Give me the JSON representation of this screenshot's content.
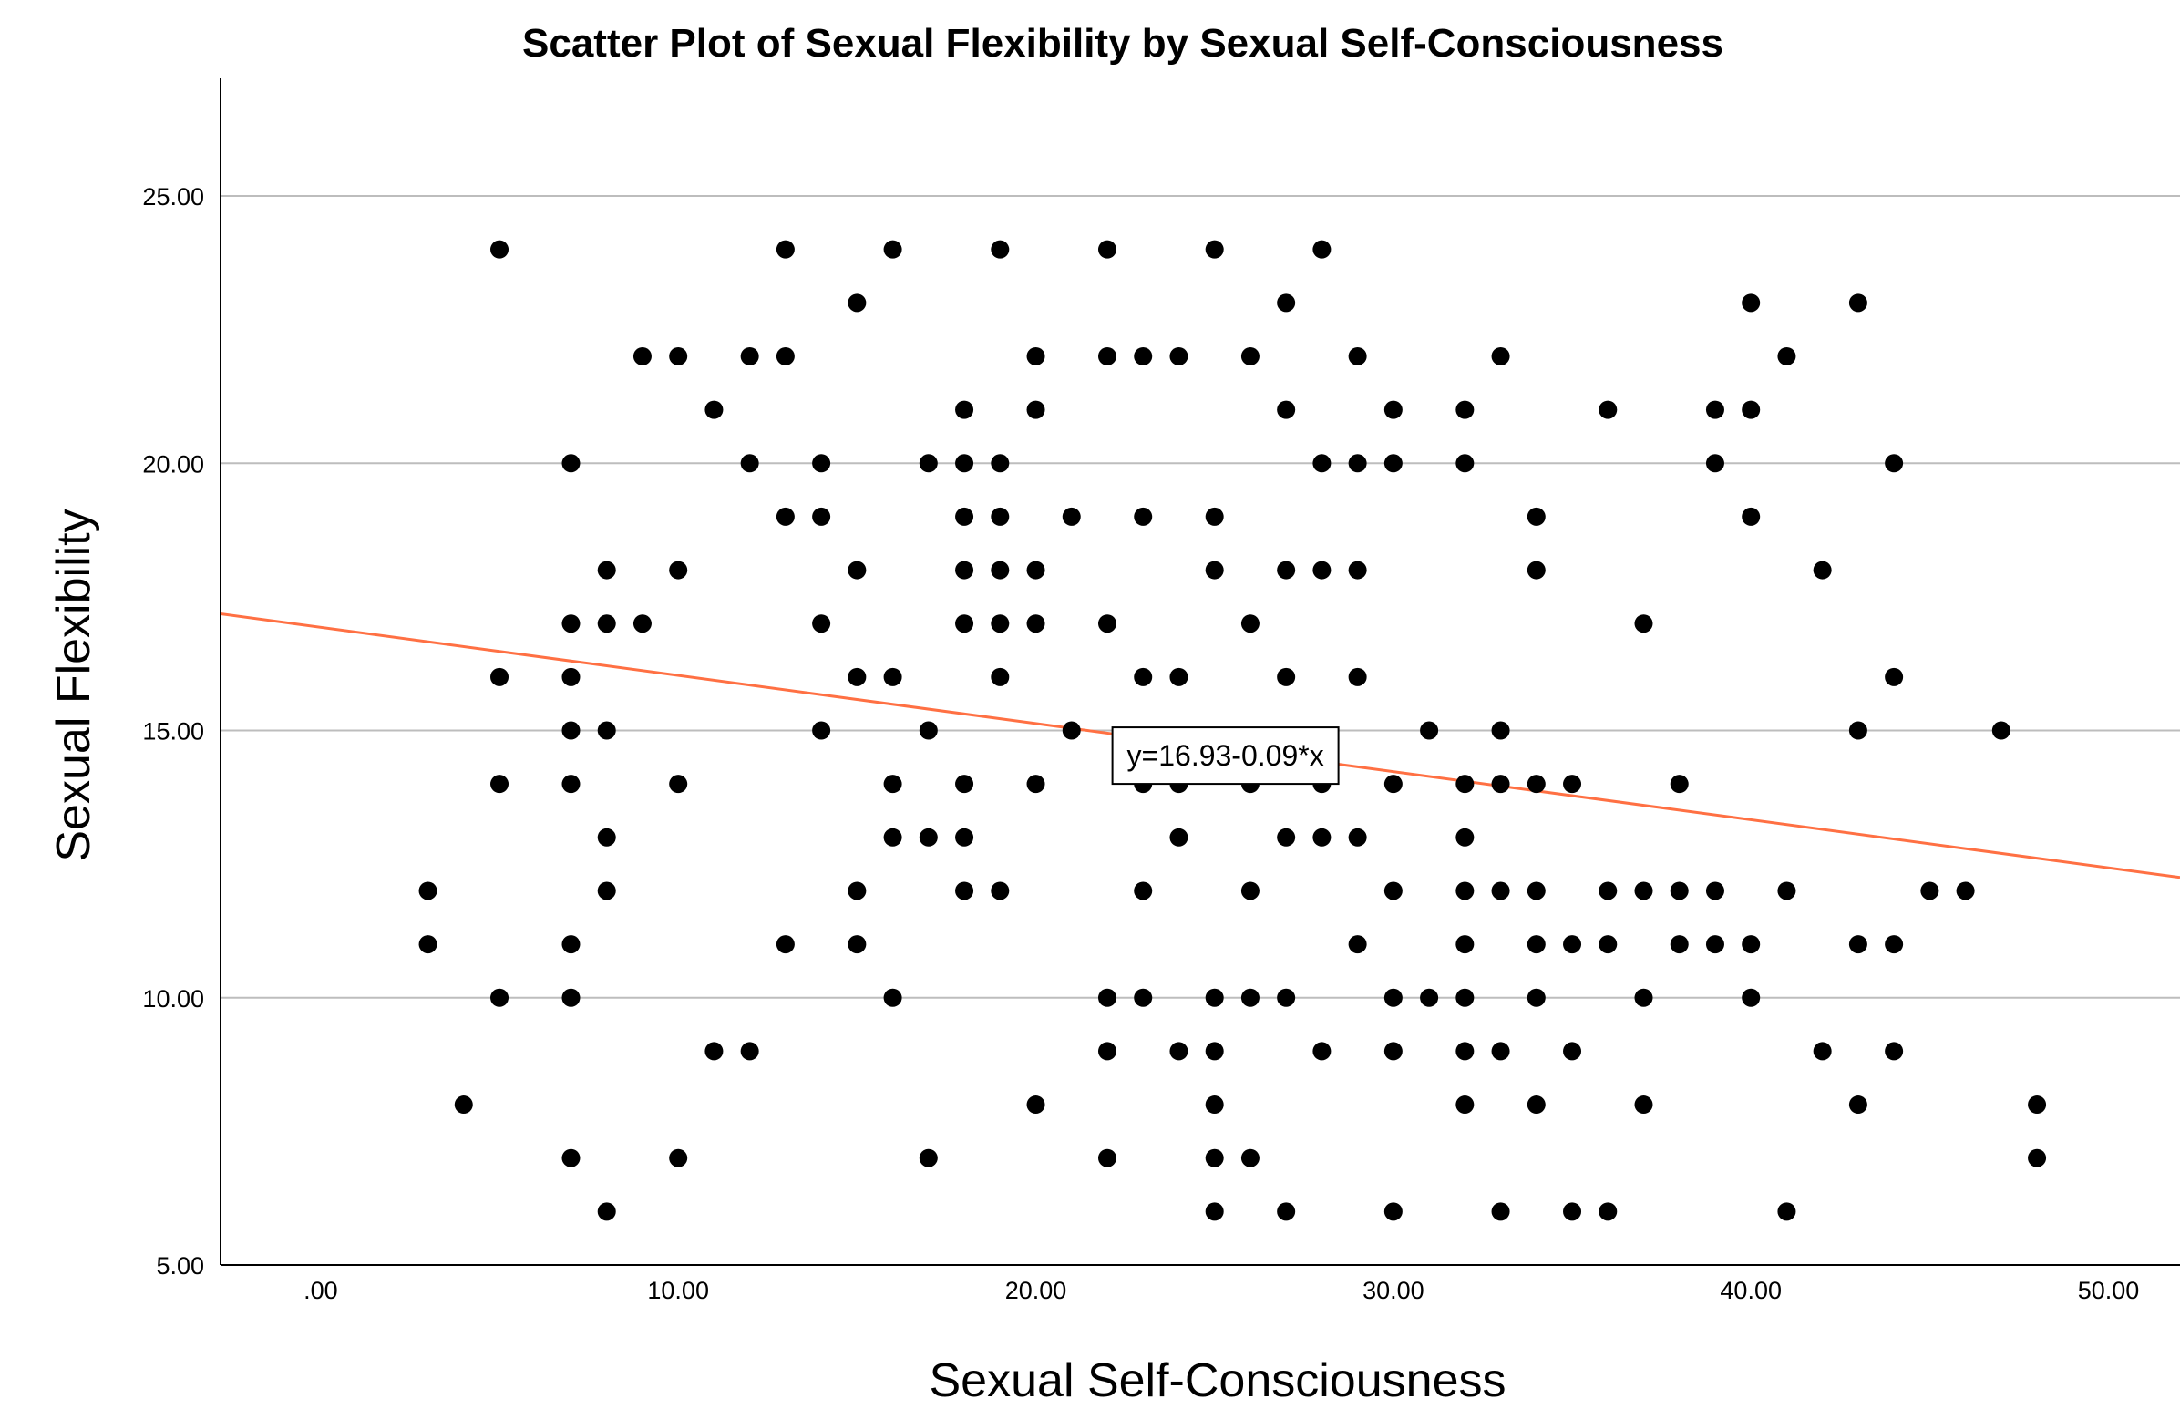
{
  "chart_data": {
    "type": "scatter",
    "title": "Scatter Plot of Sexual Flexibility by Sexual Self-Consciousness",
    "xlabel": "Sexual Self-Consciousness",
    "ylabel": "Sexual Flexibility",
    "xlim": [
      -2.8,
      52.0
    ],
    "ylim": [
      5.0,
      27.2
    ],
    "x_ticks": [
      0,
      10,
      20,
      30,
      40,
      50
    ],
    "x_tick_labels": [
      ".00",
      "10.00",
      "20.00",
      "30.00",
      "40.00",
      "50.00"
    ],
    "y_ticks": [
      5,
      10,
      15,
      20,
      25
    ],
    "y_tick_labels": [
      "5.00",
      "10.00",
      "15.00",
      "20.00",
      "25.00"
    ],
    "grid": "horizontal",
    "legend": "none",
    "colors": {
      "points": "#000000",
      "fit_line": "#ff7043",
      "grid": "#bdbdbd",
      "axis": "#000000"
    },
    "fit_line": {
      "intercept": 16.93,
      "slope": -0.09,
      "label": "y=16.93-0.09*x"
    },
    "points": [
      [
        5,
        24
      ],
      [
        13,
        24
      ],
      [
        16,
        24
      ],
      [
        19,
        24
      ],
      [
        22,
        24
      ],
      [
        25,
        24
      ],
      [
        28,
        24
      ],
      [
        15,
        23
      ],
      [
        27,
        23
      ],
      [
        40,
        23
      ],
      [
        43,
        23
      ],
      [
        9,
        22
      ],
      [
        10,
        22
      ],
      [
        12,
        22
      ],
      [
        13,
        22
      ],
      [
        20,
        22
      ],
      [
        22,
        22
      ],
      [
        23,
        22
      ],
      [
        24,
        22
      ],
      [
        26,
        22
      ],
      [
        29,
        22
      ],
      [
        33,
        22
      ],
      [
        41,
        22
      ],
      [
        11,
        21
      ],
      [
        18,
        21
      ],
      [
        20,
        21
      ],
      [
        27,
        21
      ],
      [
        30,
        21
      ],
      [
        32,
        21
      ],
      [
        36,
        21
      ],
      [
        39,
        21
      ],
      [
        40,
        21
      ],
      [
        7,
        20
      ],
      [
        12,
        20
      ],
      [
        14,
        20
      ],
      [
        17,
        20
      ],
      [
        18,
        20
      ],
      [
        19,
        20
      ],
      [
        28,
        20
      ],
      [
        29,
        20
      ],
      [
        30,
        20
      ],
      [
        32,
        20
      ],
      [
        39,
        20
      ],
      [
        44,
        20
      ],
      [
        13,
        19
      ],
      [
        14,
        19
      ],
      [
        18,
        19
      ],
      [
        19,
        19
      ],
      [
        21,
        19
      ],
      [
        23,
        19
      ],
      [
        25,
        19
      ],
      [
        34,
        19
      ],
      [
        40,
        19
      ],
      [
        8,
        18
      ],
      [
        10,
        18
      ],
      [
        15,
        18
      ],
      [
        18,
        18
      ],
      [
        19,
        18
      ],
      [
        20,
        18
      ],
      [
        25,
        18
      ],
      [
        27,
        18
      ],
      [
        28,
        18
      ],
      [
        29,
        18
      ],
      [
        34,
        18
      ],
      [
        42,
        18
      ],
      [
        7,
        17
      ],
      [
        8,
        17
      ],
      [
        9,
        17
      ],
      [
        14,
        17
      ],
      [
        18,
        17
      ],
      [
        19,
        17
      ],
      [
        20,
        17
      ],
      [
        22,
        17
      ],
      [
        26,
        17
      ],
      [
        37,
        17
      ],
      [
        5,
        16
      ],
      [
        7,
        16
      ],
      [
        15,
        16
      ],
      [
        16,
        16
      ],
      [
        19,
        16
      ],
      [
        23,
        16
      ],
      [
        24,
        16
      ],
      [
        27,
        16
      ],
      [
        29,
        16
      ],
      [
        44,
        16
      ],
      [
        7,
        15
      ],
      [
        8,
        15
      ],
      [
        14,
        15
      ],
      [
        17,
        15
      ],
      [
        21,
        15
      ],
      [
        31,
        15
      ],
      [
        33,
        15
      ],
      [
        43,
        15
      ],
      [
        47,
        15
      ],
      [
        5,
        14
      ],
      [
        7,
        14
      ],
      [
        10,
        14
      ],
      [
        16,
        14
      ],
      [
        18,
        14
      ],
      [
        20,
        14
      ],
      [
        23,
        14
      ],
      [
        24,
        14
      ],
      [
        26,
        14
      ],
      [
        28,
        14
      ],
      [
        30,
        14
      ],
      [
        32,
        14
      ],
      [
        33,
        14
      ],
      [
        34,
        14
      ],
      [
        35,
        14
      ],
      [
        38,
        14
      ],
      [
        8,
        13
      ],
      [
        16,
        13
      ],
      [
        17,
        13
      ],
      [
        18,
        13
      ],
      [
        24,
        13
      ],
      [
        27,
        13
      ],
      [
        28,
        13
      ],
      [
        29,
        13
      ],
      [
        32,
        13
      ],
      [
        3,
        12
      ],
      [
        8,
        12
      ],
      [
        15,
        12
      ],
      [
        18,
        12
      ],
      [
        19,
        12
      ],
      [
        23,
        12
      ],
      [
        26,
        12
      ],
      [
        30,
        12
      ],
      [
        32,
        12
      ],
      [
        33,
        12
      ],
      [
        34,
        12
      ],
      [
        36,
        12
      ],
      [
        37,
        12
      ],
      [
        38,
        12
      ],
      [
        39,
        12
      ],
      [
        41,
        12
      ],
      [
        45,
        12
      ],
      [
        46,
        12
      ],
      [
        3,
        11
      ],
      [
        7,
        11
      ],
      [
        13,
        11
      ],
      [
        15,
        11
      ],
      [
        29,
        11
      ],
      [
        32,
        11
      ],
      [
        34,
        11
      ],
      [
        35,
        11
      ],
      [
        36,
        11
      ],
      [
        38,
        11
      ],
      [
        39,
        11
      ],
      [
        40,
        11
      ],
      [
        43,
        11
      ],
      [
        44,
        11
      ],
      [
        5,
        10
      ],
      [
        7,
        10
      ],
      [
        16,
        10
      ],
      [
        22,
        10
      ],
      [
        23,
        10
      ],
      [
        25,
        10
      ],
      [
        26,
        10
      ],
      [
        27,
        10
      ],
      [
        30,
        10
      ],
      [
        31,
        10
      ],
      [
        32,
        10
      ],
      [
        34,
        10
      ],
      [
        37,
        10
      ],
      [
        40,
        10
      ],
      [
        11,
        9
      ],
      [
        12,
        9
      ],
      [
        22,
        9
      ],
      [
        24,
        9
      ],
      [
        25,
        9
      ],
      [
        28,
        9
      ],
      [
        30,
        9
      ],
      [
        32,
        9
      ],
      [
        33,
        9
      ],
      [
        35,
        9
      ],
      [
        42,
        9
      ],
      [
        44,
        9
      ],
      [
        4,
        8
      ],
      [
        20,
        8
      ],
      [
        25,
        8
      ],
      [
        32,
        8
      ],
      [
        34,
        8
      ],
      [
        37,
        8
      ],
      [
        43,
        8
      ],
      [
        48,
        8
      ],
      [
        7,
        7
      ],
      [
        10,
        7
      ],
      [
        17,
        7
      ],
      [
        22,
        7
      ],
      [
        25,
        7
      ],
      [
        26,
        7
      ],
      [
        48,
        7
      ],
      [
        8,
        6
      ],
      [
        25,
        6
      ],
      [
        27,
        6
      ],
      [
        30,
        6
      ],
      [
        33,
        6
      ],
      [
        35,
        6
      ],
      [
        36,
        6
      ],
      [
        41,
        6
      ]
    ]
  }
}
